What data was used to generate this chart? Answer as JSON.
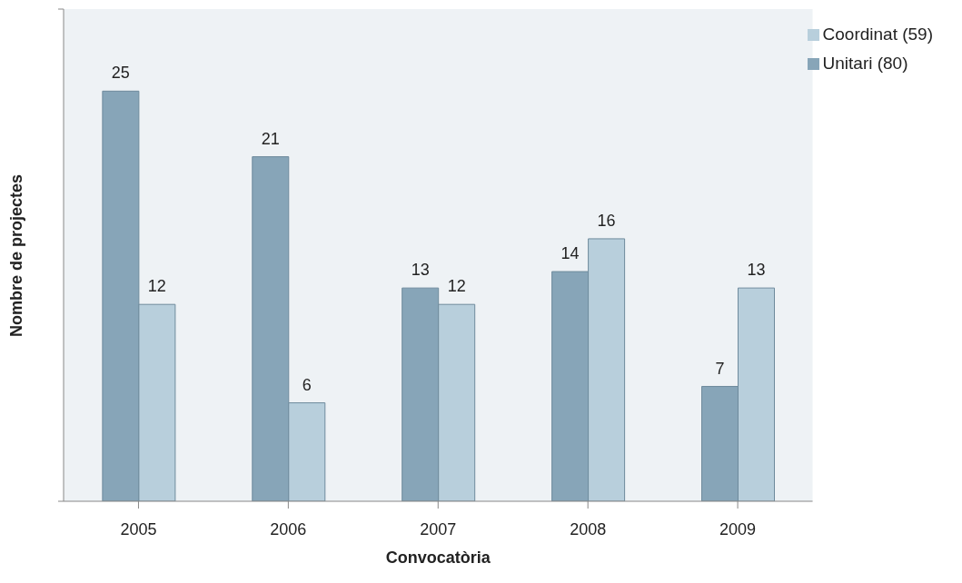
{
  "chart_data": {
    "type": "bar",
    "xlabel": "Convocatòria",
    "ylabel": "Nombre de projectes",
    "categories": [
      "2005",
      "2006",
      "2007",
      "2008",
      "2009"
    ],
    "series": [
      {
        "name": "Unitari (80)",
        "color": "#87a5b8",
        "values": [
          25,
          21,
          13,
          14,
          7
        ]
      },
      {
        "name": "Coordinat (59)",
        "color": "#b8cfdc",
        "values": [
          12,
          6,
          12,
          16,
          13
        ]
      }
    ],
    "ylim": [
      0,
      30
    ],
    "yticks": [
      {
        "value": 0,
        "label": null
      },
      {
        "value": 30,
        "label": null
      }
    ],
    "tick_labels": "x",
    "data_labels": true,
    "legend": "top right"
  }
}
